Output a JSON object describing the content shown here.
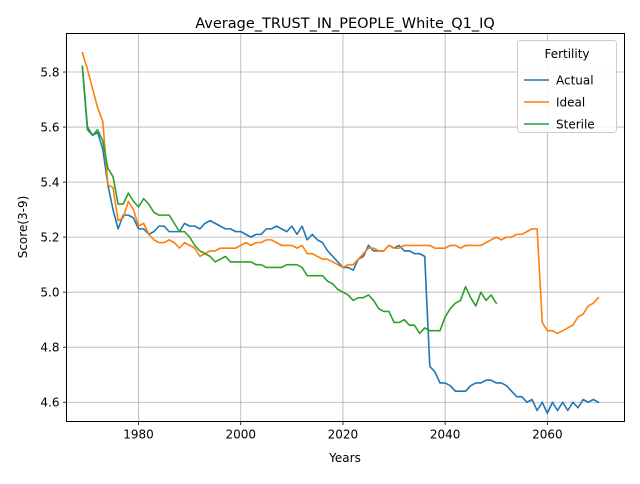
{
  "chart_data": {
    "type": "line",
    "title": "Average_TRUST_IN_PEOPLE_White_Q1_IQ",
    "xlabel": "Years",
    "ylabel": "Score(3-9)",
    "xlim": [
      1965.9,
      2075.1
    ],
    "ylim": [
      4.53,
      5.94
    ],
    "x_ticks": [
      1980,
      2000,
      2020,
      2040,
      2060
    ],
    "y_ticks": [
      4.6,
      4.8,
      5.0,
      5.2,
      5.4,
      5.6,
      5.8
    ],
    "grid": true,
    "legend": {
      "title": "Fertility",
      "placement": "top-right"
    },
    "series": [
      {
        "name": "Actual",
        "color": "#1f77b4",
        "x": [
          1969,
          1970,
          1971,
          1972,
          1973,
          1974,
          1975,
          1976,
          1977,
          1978,
          1979,
          1980,
          1981,
          1982,
          1983,
          1984,
          1985,
          1986,
          1987,
          1988,
          1989,
          1990,
          1991,
          1992,
          1993,
          1994,
          1995,
          1996,
          1997,
          1998,
          1999,
          2000,
          2001,
          2002,
          2003,
          2004,
          2005,
          2006,
          2007,
          2008,
          2009,
          2010,
          2011,
          2012,
          2013,
          2014,
          2015,
          2016,
          2017,
          2018,
          2019,
          2020,
          2021,
          2022,
          2023,
          2024,
          2025,
          2026,
          2027,
          2028,
          2029,
          2030,
          2031,
          2032,
          2033,
          2034,
          2035,
          2036,
          2037,
          2038,
          2039,
          2040,
          2041,
          2042,
          2043,
          2044,
          2045,
          2046,
          2047,
          2048,
          2049,
          2050,
          2051,
          2052,
          2053,
          2054,
          2055,
          2056,
          2057,
          2058,
          2059,
          2060,
          2061,
          2062,
          2063,
          2064,
          2065,
          2066,
          2067,
          2068,
          2069,
          2070
        ],
        "y": [
          5.82,
          5.6,
          5.57,
          5.58,
          5.52,
          5.39,
          5.3,
          5.23,
          5.28,
          5.28,
          5.27,
          5.23,
          5.23,
          5.21,
          5.22,
          5.24,
          5.24,
          5.22,
          5.22,
          5.22,
          5.25,
          5.24,
          5.24,
          5.23,
          5.25,
          5.26,
          5.25,
          5.24,
          5.23,
          5.23,
          5.22,
          5.22,
          5.21,
          5.2,
          5.21,
          5.21,
          5.23,
          5.23,
          5.24,
          5.23,
          5.22,
          5.24,
          5.21,
          5.24,
          5.19,
          5.21,
          5.19,
          5.18,
          5.15,
          5.13,
          5.11,
          5.09,
          5.09,
          5.08,
          5.12,
          5.13,
          5.17,
          5.15,
          5.15,
          5.15,
          5.17,
          5.16,
          5.17,
          5.15,
          5.15,
          5.14,
          5.14,
          5.13,
          4.73,
          4.71,
          4.67,
          4.67,
          4.66,
          4.64,
          4.64,
          4.64,
          4.66,
          4.67,
          4.67,
          4.68,
          4.68,
          4.67,
          4.67,
          4.66,
          4.64,
          4.62,
          4.62,
          4.6,
          4.61,
          4.57,
          4.6,
          4.56,
          4.6,
          4.57,
          4.6,
          4.57,
          4.6,
          4.58,
          4.61,
          4.6,
          4.61,
          4.6
        ]
      },
      {
        "name": "Ideal",
        "color": "#ff7f0e",
        "x": [
          1969,
          1970,
          1971,
          1972,
          1973,
          1974,
          1975,
          1976,
          1977,
          1978,
          1979,
          1980,
          1981,
          1982,
          1983,
          1984,
          1985,
          1986,
          1987,
          1988,
          1989,
          1990,
          1991,
          1992,
          1993,
          1994,
          1995,
          1996,
          1997,
          1998,
          1999,
          2000,
          2001,
          2002,
          2003,
          2004,
          2005,
          2006,
          2007,
          2008,
          2009,
          2010,
          2011,
          2012,
          2013,
          2014,
          2015,
          2016,
          2017,
          2018,
          2019,
          2020,
          2021,
          2022,
          2023,
          2024,
          2025,
          2026,
          2027,
          2028,
          2029,
          2030,
          2031,
          2032,
          2033,
          2034,
          2035,
          2036,
          2037,
          2038,
          2039,
          2040,
          2041,
          2042,
          2043,
          2044,
          2045,
          2046,
          2047,
          2048,
          2049,
          2050,
          2051,
          2052,
          2053,
          2054,
          2055,
          2056,
          2057,
          2058,
          2059,
          2060,
          2061,
          2062,
          2063,
          2064,
          2065,
          2066,
          2067,
          2068,
          2069,
          2070
        ],
        "y": [
          5.87,
          5.81,
          5.74,
          5.67,
          5.62,
          5.39,
          5.38,
          5.26,
          5.27,
          5.33,
          5.3,
          5.24,
          5.25,
          5.21,
          5.19,
          5.18,
          5.18,
          5.19,
          5.18,
          5.16,
          5.18,
          5.17,
          5.16,
          5.13,
          5.14,
          5.15,
          5.15,
          5.16,
          5.16,
          5.16,
          5.16,
          5.17,
          5.18,
          5.17,
          5.18,
          5.18,
          5.19,
          5.19,
          5.18,
          5.17,
          5.17,
          5.17,
          5.16,
          5.17,
          5.14,
          5.14,
          5.13,
          5.12,
          5.12,
          5.11,
          5.1,
          5.09,
          5.1,
          5.1,
          5.12,
          5.14,
          5.16,
          5.16,
          5.15,
          5.15,
          5.17,
          5.16,
          5.16,
          5.17,
          5.17,
          5.17,
          5.17,
          5.17,
          5.17,
          5.16,
          5.16,
          5.16,
          5.17,
          5.17,
          5.16,
          5.17,
          5.17,
          5.17,
          5.17,
          5.18,
          5.19,
          5.2,
          5.19,
          5.2,
          5.2,
          5.21,
          5.21,
          5.22,
          5.23,
          5.23,
          4.89,
          4.86,
          4.86,
          4.85,
          4.86,
          4.87,
          4.88,
          4.91,
          4.92,
          4.95,
          4.96,
          4.98
        ]
      },
      {
        "name": "Sterile",
        "color": "#2ca02c",
        "x": [
          1969,
          1970,
          1971,
          1972,
          1973,
          1974,
          1975,
          1976,
          1977,
          1978,
          1979,
          1980,
          1981,
          1982,
          1983,
          1984,
          1985,
          1986,
          1987,
          1988,
          1989,
          1990,
          1991,
          1992,
          1993,
          1994,
          1995,
          1996,
          1997,
          1998,
          1999,
          2000,
          2001,
          2002,
          2003,
          2004,
          2005,
          2006,
          2007,
          2008,
          2009,
          2010,
          2011,
          2012,
          2013,
          2014,
          2015,
          2016,
          2017,
          2018,
          2019,
          2020,
          2021,
          2022,
          2023,
          2024,
          2025,
          2026,
          2027,
          2028,
          2029,
          2030,
          2031,
          2032,
          2033,
          2034,
          2035,
          2036,
          2037,
          2038,
          2039,
          2040,
          2041,
          2042,
          2043,
          2044,
          2045,
          2046,
          2047,
          2048,
          2049,
          2050
        ],
        "y": [
          5.82,
          5.59,
          5.57,
          5.59,
          5.55,
          5.45,
          5.42,
          5.32,
          5.32,
          5.36,
          5.33,
          5.31,
          5.34,
          5.32,
          5.29,
          5.28,
          5.28,
          5.28,
          5.25,
          5.22,
          5.22,
          5.2,
          5.17,
          5.15,
          5.14,
          5.13,
          5.11,
          5.12,
          5.13,
          5.11,
          5.11,
          5.11,
          5.11,
          5.11,
          5.1,
          5.1,
          5.09,
          5.09,
          5.09,
          5.09,
          5.1,
          5.1,
          5.1,
          5.09,
          5.06,
          5.06,
          5.06,
          5.06,
          5.04,
          5.03,
          5.01,
          5.0,
          4.99,
          4.97,
          4.98,
          4.98,
          4.99,
          4.97,
          4.94,
          4.93,
          4.93,
          4.89,
          4.89,
          4.9,
          4.88,
          4.88,
          4.85,
          4.87,
          4.86,
          4.86,
          4.86,
          4.91,
          4.94,
          4.96,
          4.97,
          5.02,
          4.98,
          4.95,
          5.0,
          4.97,
          4.99,
          4.96
        ]
      }
    ]
  }
}
